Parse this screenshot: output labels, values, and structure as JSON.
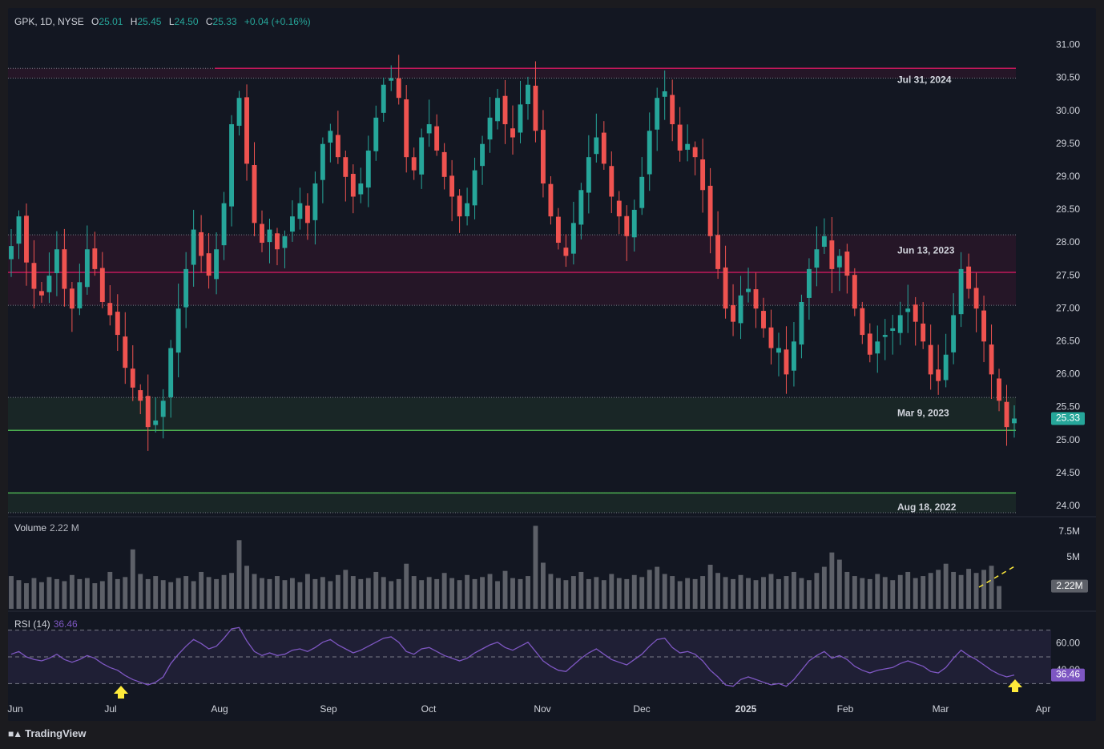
{
  "header": {
    "symbol": "GPK, 1D, NYSE",
    "open_label": "O",
    "open": "25.01",
    "high_label": "H",
    "high": "25.45",
    "low_label": "L",
    "low": "24.50",
    "close_label": "C",
    "close": "25.33",
    "change": "+0.04 (+0.16%)"
  },
  "volume_pane": {
    "label": "Volume",
    "value": "2.22 M"
  },
  "rsi_pane": {
    "label": "RSI (14)",
    "value": "36.46"
  },
  "footer": {
    "brand": "TradingView"
  },
  "colors": {
    "up": "#26a69a",
    "down": "#ef5350",
    "resistance": "#c2185b",
    "support": "#4caf50",
    "rsi": "#7e57c2",
    "volume": "#5d6068",
    "annotation_arrow": "#ffeb3b"
  },
  "chart_data": {
    "type": "candlestick",
    "symbol": "GPK",
    "interval": "1D",
    "exchange": "NYSE",
    "x_ticks": [
      "Jun",
      "Jul",
      "Aug",
      "Sep",
      "Oct",
      "Nov",
      "Dec",
      "2025",
      "Feb",
      "Mar",
      "Apr"
    ],
    "price_axis": {
      "range": [
        23.9,
        31.2
      ],
      "ticks": [
        "31.00",
        "30.50",
        "30.00",
        "29.50",
        "29.00",
        "28.50",
        "28.00",
        "27.50",
        "27.00",
        "26.50",
        "26.00",
        "25.50",
        "25.00",
        "24.50",
        "24.00"
      ]
    },
    "last_price": "25.33",
    "levels": [
      {
        "label": "Jul 31, 2024",
        "price": 30.65,
        "kind": "resistance",
        "zone": [
          30.5,
          30.65
        ]
      },
      {
        "label": "Jun 13, 2023",
        "price": 27.55,
        "kind": "resistance",
        "zone": [
          27.05,
          28.12
        ]
      },
      {
        "label": "Mar 9, 2023",
        "price": 25.15,
        "kind": "support",
        "zone": [
          25.15,
          25.65
        ]
      },
      {
        "label": "Aug 18, 2022",
        "price": 24.2,
        "kind": "support",
        "zone": [
          23.9,
          24.2
        ]
      }
    ],
    "closes": [
      27.95,
      28.4,
      27.7,
      27.3,
      27.2,
      27.5,
      27.9,
      27.3,
      27.0,
      27.4,
      27.9,
      27.6,
      27.1,
      26.9,
      26.6,
      26.1,
      25.8,
      25.6,
      25.2,
      25.3,
      25.6,
      26.4,
      27.0,
      27.6,
      28.2,
      27.8,
      27.5,
      27.9,
      28.6,
      29.8,
      30.2,
      29.2,
      28.3,
      28.0,
      28.2,
      27.9,
      28.1,
      28.4,
      28.6,
      28.3,
      28.9,
      29.5,
      29.7,
      29.3,
      29.0,
      28.7,
      28.9,
      29.4,
      29.9,
      30.4,
      30.5,
      30.2,
      29.3,
      29.1,
      29.6,
      29.8,
      29.4,
      29.0,
      28.7,
      28.4,
      28.6,
      29.1,
      29.5,
      29.9,
      30.2,
      29.8,
      29.6,
      30.1,
      30.4,
      29.7,
      28.9,
      28.4,
      28.0,
      27.8,
      28.3,
      28.8,
      29.3,
      29.6,
      29.2,
      28.7,
      28.4,
      28.1,
      28.5,
      29.0,
      29.7,
      30.2,
      30.3,
      29.8,
      29.4,
      29.5,
      29.3,
      28.8,
      28.1,
      27.6,
      27.0,
      26.8,
      27.2,
      27.3,
      27.0,
      26.7,
      26.4,
      26.4,
      26.0,
      26.5,
      27.1,
      27.6,
      27.9,
      28.1,
      27.6,
      27.8,
      27.5,
      27.0,
      26.6,
      26.3,
      26.5,
      26.6,
      26.7,
      26.9,
      27.0,
      26.8,
      26.5,
      26.0,
      25.9,
      26.3,
      26.9,
      27.6,
      27.3,
      27.0,
      26.5,
      26.0,
      25.6,
      25.2,
      25.33
    ],
    "volume": {
      "axis_ticks": [
        "7.5M",
        "5M"
      ],
      "last_value": "2.22M",
      "values_millions": [
        3.2,
        2.8,
        2.5,
        3.0,
        2.6,
        3.1,
        2.9,
        2.7,
        3.3,
        2.9,
        3.0,
        2.5,
        2.7,
        3.6,
        2.9,
        3.1,
        5.8,
        3.4,
        2.9,
        3.2,
        2.8,
        2.6,
        3.0,
        3.2,
        2.7,
        3.6,
        3.1,
        2.9,
        3.3,
        3.5,
        6.7,
        4.2,
        3.4,
        3.0,
        2.9,
        3.2,
        2.8,
        3.0,
        2.6,
        3.4,
        2.9,
        3.1,
        2.7,
        3.3,
        3.8,
        3.2,
        2.9,
        3.0,
        3.6,
        3.1,
        2.7,
        2.9,
        4.4,
        3.2,
        2.8,
        3.1,
        2.9,
        3.5,
        3.0,
        2.8,
        3.3,
        2.9,
        3.1,
        3.4,
        2.7,
        3.7,
        3.0,
        2.9,
        3.2,
        8.1,
        4.5,
        3.4,
        3.0,
        2.8,
        3.2,
        3.6,
        2.9,
        3.1,
        2.8,
        3.4,
        3.0,
        2.9,
        3.3,
        3.1,
        3.8,
        4.1,
        3.4,
        3.2,
        2.7,
        3.0,
        2.9,
        3.2,
        4.3,
        3.5,
        3.1,
        2.9,
        3.3,
        3.0,
        2.8,
        3.1,
        3.4,
        2.9,
        3.2,
        3.6,
        3.0,
        2.8,
        3.5,
        4.1,
        5.5,
        4.8,
        3.6,
        3.2,
        3.0,
        2.9,
        3.4,
        3.1,
        2.8,
        3.3,
        3.6,
        3.0,
        3.2,
        3.5,
        3.8,
        4.4,
        3.6,
        3.3,
        3.9,
        3.5,
        3.8,
        4.2,
        2.22
      ]
    },
    "rsi": {
      "period": 14,
      "last_value": "36.46",
      "axis_ticks": [
        "60.00",
        "40.00"
      ],
      "levels": [
        70,
        50,
        30
      ],
      "values": [
        52,
        54,
        50,
        48,
        47,
        49,
        52,
        48,
        46,
        48,
        51,
        49,
        45,
        42,
        40,
        36,
        33,
        31,
        29,
        31,
        35,
        45,
        52,
        58,
        63,
        60,
        56,
        58,
        64,
        71,
        72,
        62,
        54,
        51,
        53,
        51,
        52,
        55,
        56,
        54,
        57,
        61,
        63,
        59,
        56,
        53,
        55,
        58,
        61,
        64,
        65,
        61,
        54,
        52,
        56,
        57,
        54,
        51,
        49,
        47,
        49,
        53,
        56,
        59,
        61,
        57,
        55,
        58,
        61,
        54,
        47,
        43,
        40,
        39,
        44,
        49,
        53,
        56,
        52,
        48,
        46,
        44,
        48,
        52,
        58,
        63,
        64,
        57,
        53,
        54,
        52,
        47,
        40,
        35,
        29,
        28,
        33,
        35,
        33,
        31,
        29,
        30,
        28,
        33,
        40,
        47,
        51,
        54,
        49,
        51,
        48,
        43,
        40,
        38,
        40,
        41,
        42,
        45,
        47,
        45,
        43,
        39,
        38,
        42,
        49,
        55,
        51,
        48,
        44,
        40,
        37,
        35,
        36.46
      ]
    },
    "annotations": [
      {
        "type": "arrow-up",
        "pane": "rsi",
        "at": "Jul"
      },
      {
        "type": "arrow-up",
        "pane": "rsi",
        "at": "last"
      },
      {
        "type": "dashed-trendline",
        "pane": "volume",
        "at": "Mar",
        "direction": "rising"
      }
    ]
  }
}
